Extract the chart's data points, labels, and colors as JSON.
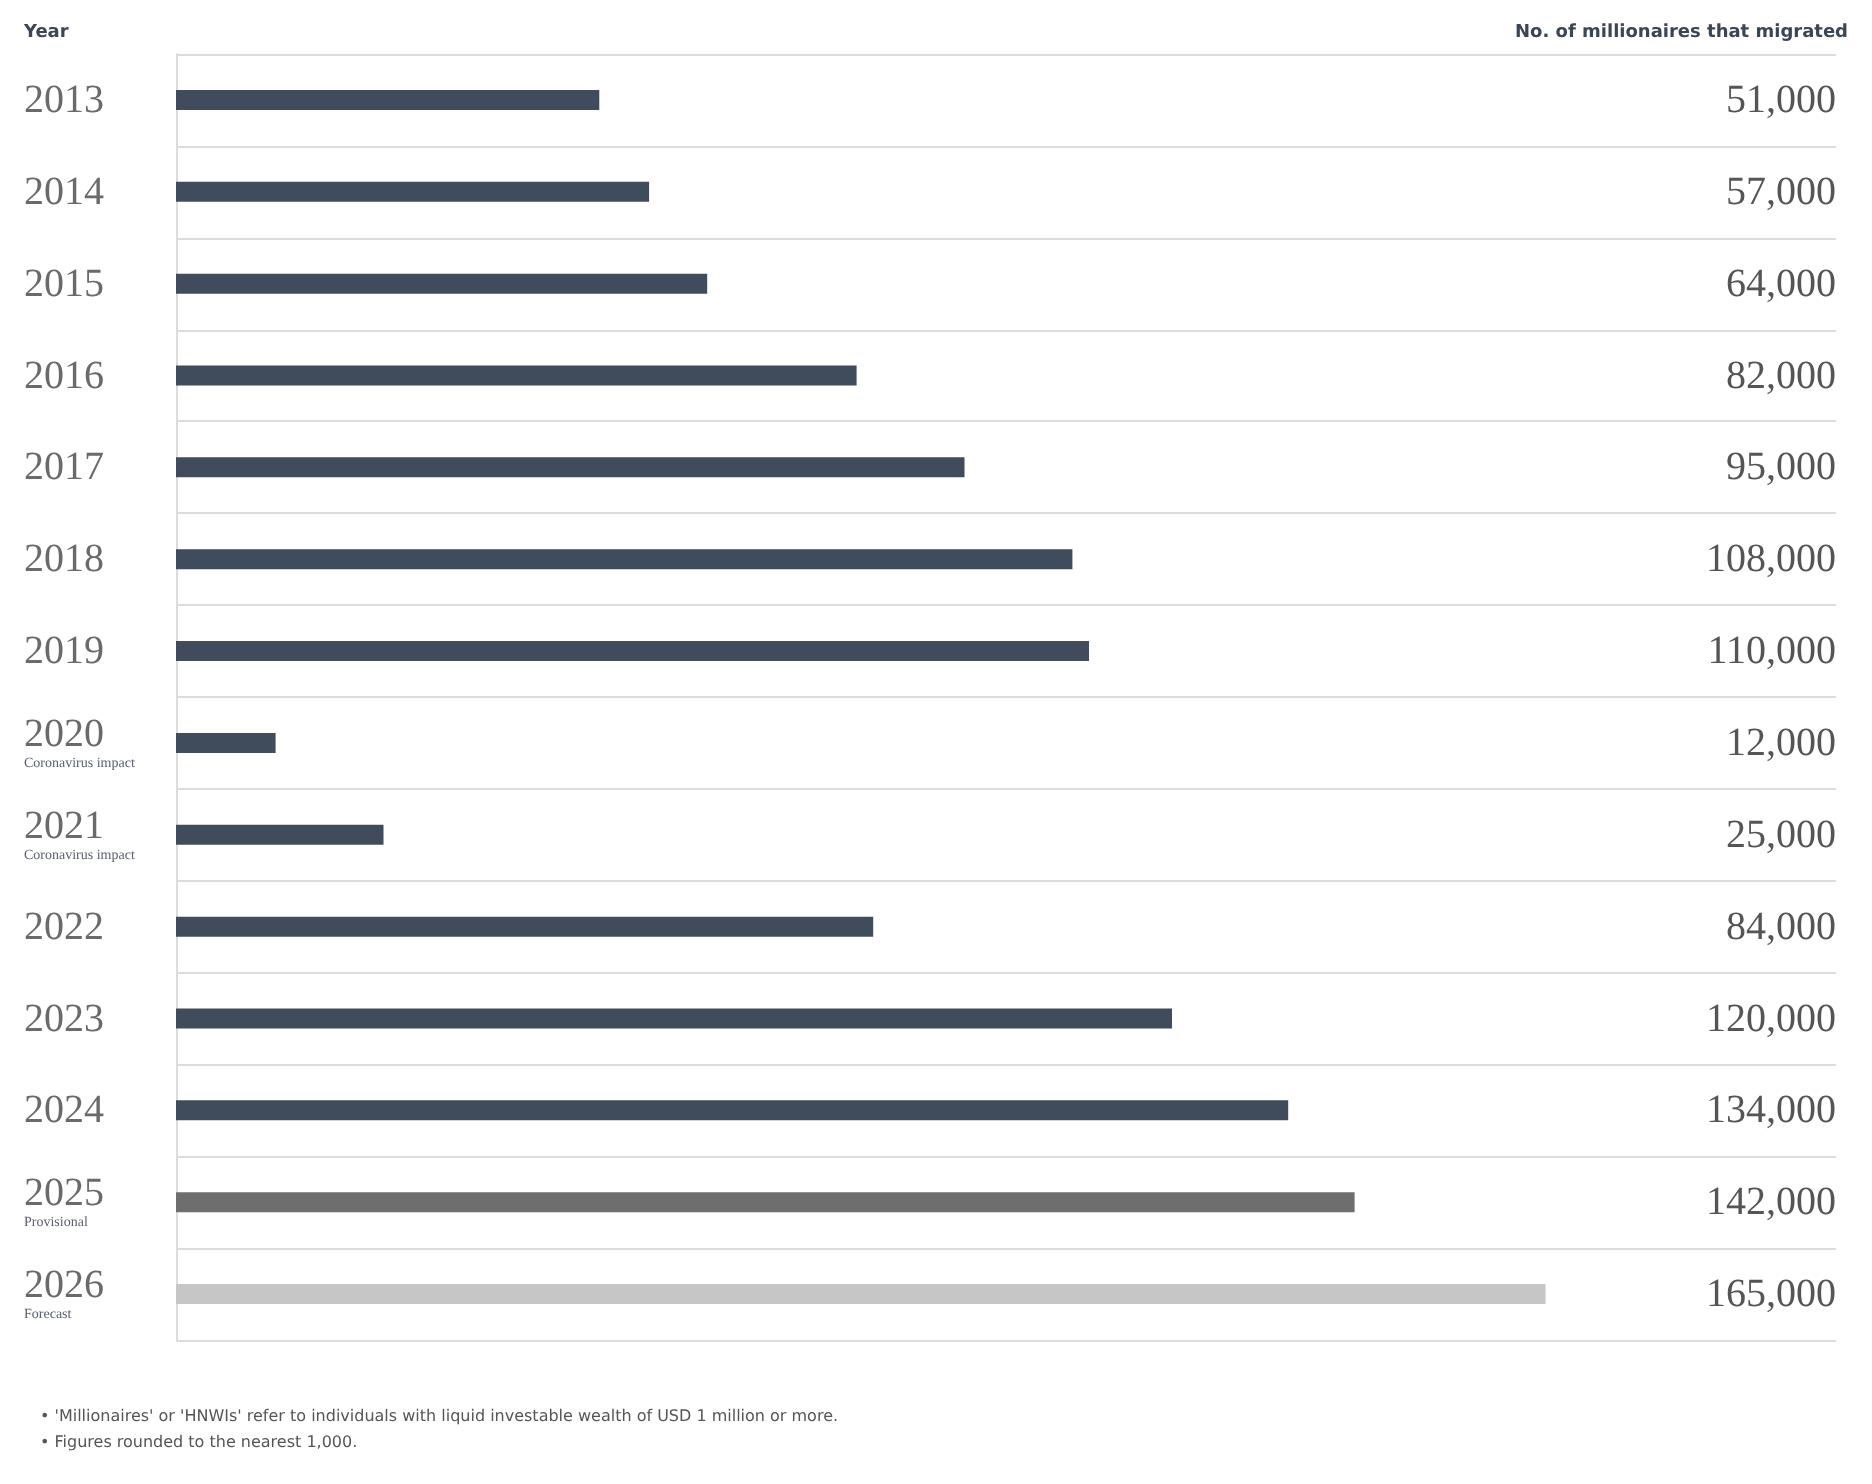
{
  "chart_data": {
    "type": "bar",
    "orientation": "horizontal",
    "ylabel": "Year",
    "xlabel": "No. of millionaires that migrated",
    "categories": [
      "2013",
      "2014",
      "2015",
      "2016",
      "2017",
      "2018",
      "2019",
      "2020\nCoronavirus impact",
      "2021\nCoronavirus impact",
      "2022",
      "2023",
      "2024",
      "2025\nProvisional",
      "2026\nForecast"
    ],
    "values": [
      51000,
      57000,
      64000,
      82000,
      95000,
      108000,
      110000,
      12000,
      25000,
      84000,
      120000,
      134000,
      142000,
      165000
    ],
    "value_labels": [
      "51,000",
      "57,000",
      "64,000",
      "82,000",
      "95,000",
      "108,000",
      "110,000",
      "12,000",
      "25,000",
      "84,000",
      "120,000",
      "134,000",
      "142,000",
      "165,000"
    ],
    "colors": [
      "#404b5b",
      "#404b5b",
      "#404b5b",
      "#404b5b",
      "#404b5b",
      "#404b5b",
      "#404b5b",
      "#404b5b",
      "#404b5b",
      "#404b5b",
      "#404b5b",
      "#404b5b",
      "#6e6e6e",
      "#c6c6c6"
    ],
    "xlim": [
      0,
      200000
    ],
    "tick_labels": "y",
    "grid": "y",
    "annotations": [
      "• 'Millionaires' or 'HNWIs' refer to individuals with liquid investable wealth of USD 1 million or more.",
      "• Figures rounded to the nearest 1,000."
    ]
  }
}
